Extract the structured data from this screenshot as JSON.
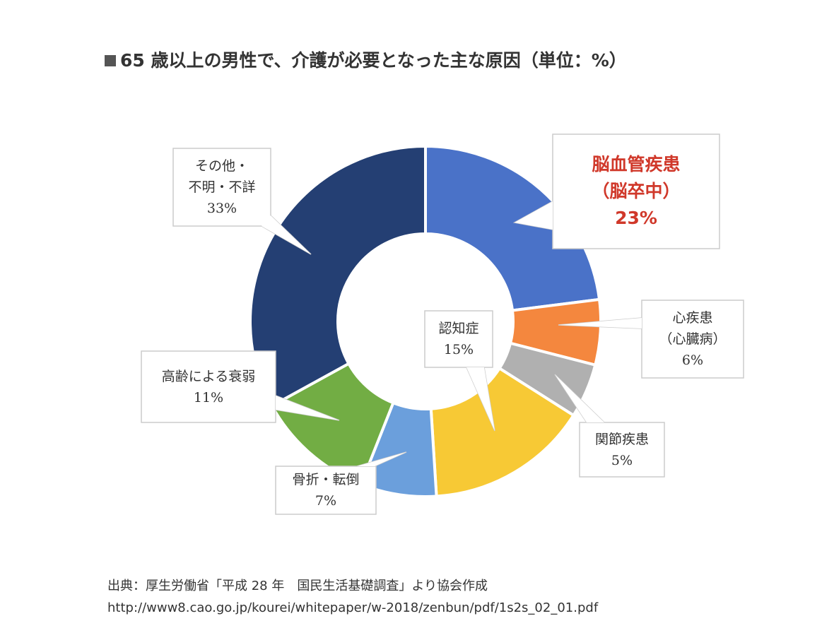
{
  "chart_data": {
    "type": "pie",
    "donut": true,
    "title": "65 歳以上の男性で、介護が必要となった主な原因（単位：%）",
    "unit": "%",
    "slices": [
      {
        "name": "脳血管疾患（脳卒中）",
        "lines": [
          "脳血管疾患",
          "（脳卒中）"
        ],
        "value": 23,
        "label": "23%",
        "color": "#4a72c8",
        "highlight": true
      },
      {
        "name": "心疾患（心臓病）",
        "lines": [
          "心疾患",
          "（心臓病）"
        ],
        "value": 6,
        "label": "6%",
        "color": "#f4873e"
      },
      {
        "name": "関節疾患",
        "lines": [
          "関節疾患"
        ],
        "value": 5,
        "label": "5%",
        "color": "#b0b0b0"
      },
      {
        "name": "認知症",
        "lines": [
          "認知症"
        ],
        "value": 15,
        "label": "15%",
        "color": "#f7c935"
      },
      {
        "name": "骨折・転倒",
        "lines": [
          "骨折・転倒"
        ],
        "value": 7,
        "label": "7%",
        "color": "#6b9fdc"
      },
      {
        "name": "高齢による衰弱",
        "lines": [
          "高齢による衰弱"
        ],
        "value": 11,
        "label": "11%",
        "color": "#72ad44"
      },
      {
        "name": "その他・不明・不詳",
        "lines": [
          "その他・",
          "不明・不詳"
        ],
        "value": 33,
        "label": "33%",
        "color": "#243f73"
      }
    ]
  },
  "source": {
    "line1": "出典：厚生労働省「平成 28 年　国民生活基礎調査」より協会作成",
    "line2": "http://www8.cao.go.jp/kourei/whitepaper/w-2018/zenbun/pdf/1s2s_02_01.pdf"
  }
}
